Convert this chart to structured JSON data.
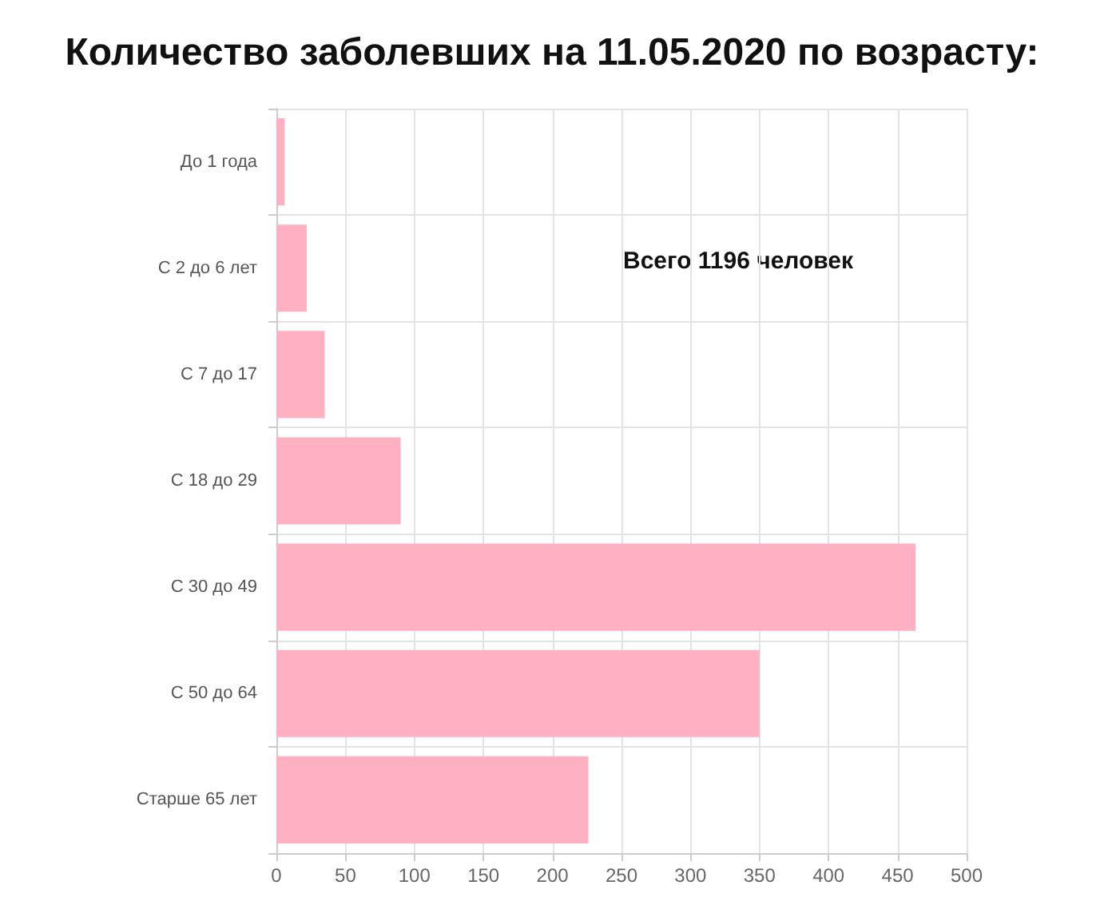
{
  "chart_data": {
    "type": "bar",
    "orientation": "horizontal",
    "title": "Количество заболевших на 11.05.2020 по возрасту:",
    "categories": [
      "До 1 года",
      "С 2 до 6 лет",
      "С 7 до 17",
      "С 18 до 29",
      "С 30 до 49",
      "С 50 до 64",
      "Старше 65 лет"
    ],
    "values": [
      6,
      22,
      35,
      90,
      463,
      350,
      226
    ],
    "color": "#ffb0c1",
    "xlim": [
      0,
      500
    ],
    "xticks": [
      0,
      50,
      100,
      150,
      200,
      250,
      300,
      350,
      400,
      450,
      500
    ],
    "grid": true,
    "annotations": [
      "Всего 1196 человек"
    ]
  }
}
